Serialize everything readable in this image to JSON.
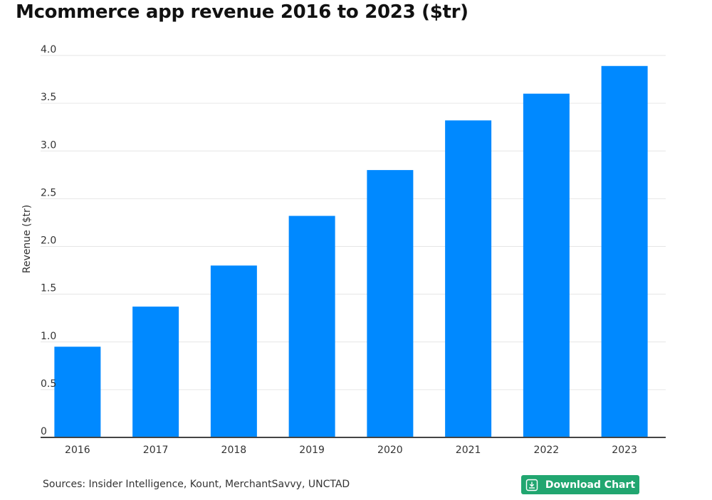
{
  "chart_data": {
    "type": "bar",
    "title": "Mcommerce app revenue 2016 to 2023 ($tr)",
    "xlabel": "",
    "ylabel": "Revenue ($tr)",
    "categories": [
      "2016",
      "2017",
      "2018",
      "2019",
      "2020",
      "2021",
      "2022",
      "2023"
    ],
    "values": [
      0.95,
      1.37,
      1.8,
      2.32,
      2.8,
      3.32,
      3.6,
      3.89
    ],
    "ylim": [
      0,
      4.0
    ],
    "yticks": [
      0,
      0.5,
      1.0,
      1.5,
      2.0,
      2.5,
      3.0,
      3.5,
      4.0
    ],
    "ytick_labels": [
      "0",
      "0.5",
      "1.0",
      "1.5",
      "2.0",
      "2.5",
      "3.0",
      "3.5",
      "4.0"
    ],
    "grid": true,
    "bar_color": "#0089ff"
  },
  "footer": {
    "source": "Sources: Insider Intelligence, Kount, MerchantSavvy, UNCTAD",
    "download_label": "Download Chart",
    "download_icon": "download-icon",
    "button_color": "#21a670"
  }
}
